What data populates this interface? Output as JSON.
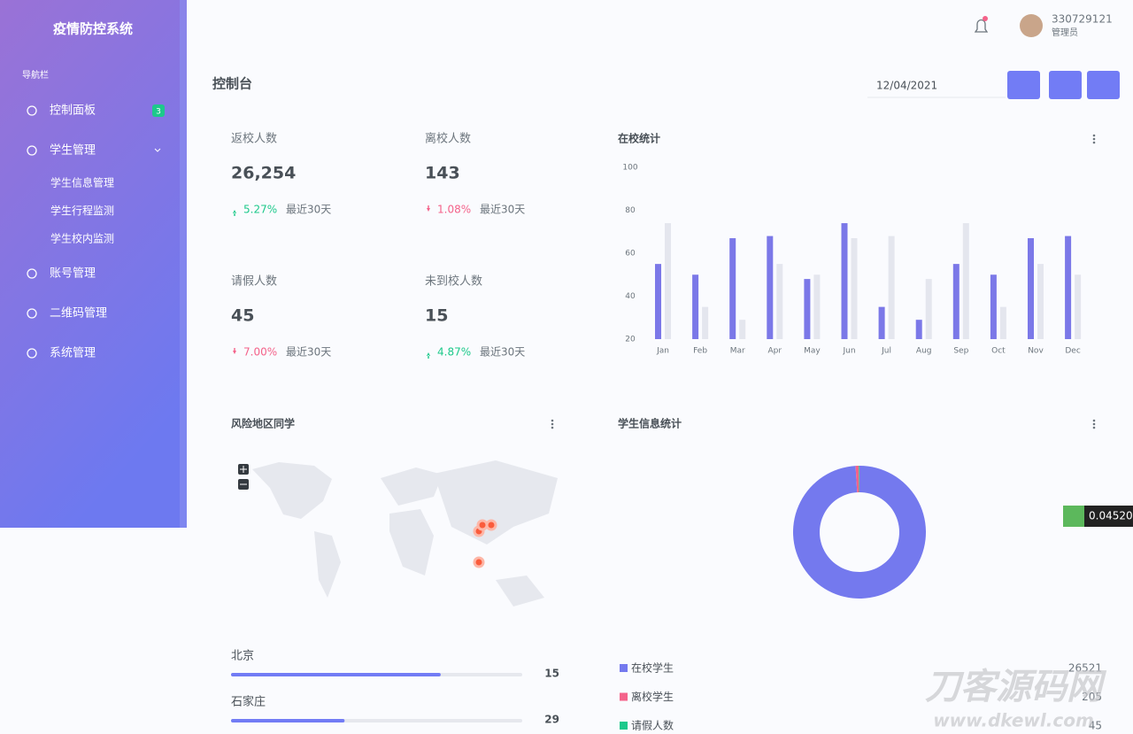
{
  "sidebar": {
    "title": "疫情防控系统",
    "nav_label": "导航栏",
    "items": [
      {
        "label": "控制面板",
        "badge": "3"
      },
      {
        "label": "学生管理",
        "subitems": [
          "学生信息管理",
          "学生行程监测",
          "学生校内监测"
        ]
      },
      {
        "label": "账号管理"
      },
      {
        "label": "二维码管理"
      },
      {
        "label": "系统管理"
      }
    ]
  },
  "header": {
    "user": "330729121",
    "role": "管理员"
  },
  "page_title": "控制台",
  "date": "12/04/2021",
  "stats": [
    {
      "label": "返校人数",
      "value": "26,254",
      "change": "5.27%",
      "direction": "up",
      "period": "最近30天"
    },
    {
      "label": "离校人数",
      "value": "143",
      "change": "1.08%",
      "direction": "down",
      "period": "最近30天"
    },
    {
      "label": "请假人数",
      "value": "45",
      "change": "7.00%",
      "direction": "down",
      "period": "最近30天"
    },
    {
      "label": "未到校人数",
      "value": "15",
      "change": "4.87%",
      "direction": "up",
      "period": "最近30天"
    }
  ],
  "chart_data": [
    {
      "type": "bar",
      "title": "在校统计",
      "categories": [
        "Jan",
        "Feb",
        "Mar",
        "Apr",
        "May",
        "Jun",
        "Jul",
        "Aug",
        "Sep",
        "Oct",
        "Nov",
        "Dec"
      ],
      "series": [
        {
          "color": "#7b78e8",
          "values": [
            55,
            50,
            67,
            68,
            48,
            74,
            35,
            29,
            55,
            50,
            67,
            68
          ]
        },
        {
          "color": "#e4e6ee",
          "values": [
            74,
            35,
            29,
            55,
            50,
            67,
            68,
            48,
            74,
            35,
            55,
            50
          ]
        }
      ],
      "ylim": [
        20,
        100
      ],
      "yticks": [
        20,
        40,
        60,
        80,
        100
      ]
    },
    {
      "type": "pie",
      "title": "学生信息统计",
      "categories": [
        "在校学生",
        "离校学生",
        "请假人数"
      ],
      "values": [
        26521,
        205,
        45
      ],
      "colors": [
        "#7479ee",
        "#f4628a",
        "#1dc98b"
      ]
    }
  ],
  "map": {
    "title": "风险地区同学",
    "regions": [
      {
        "name": "北京",
        "value": 15,
        "progress": 72
      },
      {
        "name": "石家庄",
        "value": 29,
        "progress": 39
      }
    ]
  },
  "overlay": {
    "ticker": "0.045200",
    "watermark": "刀客源码网",
    "watermark_url": "www.dkewl.com"
  }
}
